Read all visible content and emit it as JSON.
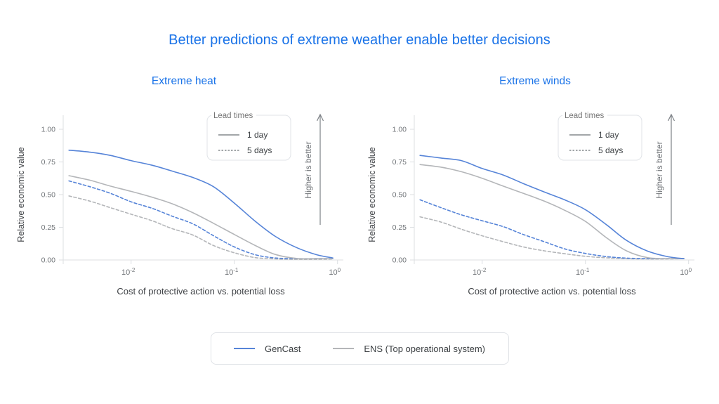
{
  "page": {
    "title": "Better predictions of extreme weather enable better decisions",
    "colors": {
      "title_blue": "#1a73e8",
      "gencast_blue": "#5684d8",
      "ens_gray": "#b4b6b9",
      "axis_line": "#dcdfe2",
      "tick_label": "#6f7377",
      "axis_title": "#3f4246",
      "legend_border": "#e0e3e7",
      "legend_text": "#3c4043",
      "legend_title_text": "#757575",
      "swatch_gray": "#84888c",
      "arrow_gray": "#7d8287"
    }
  },
  "bottom_legend": {
    "items": [
      {
        "name": "GenCast",
        "color": "#5684d8",
        "style": "solid"
      },
      {
        "name": "ENS (Top operational system)",
        "color": "#b4b6b9",
        "style": "solid"
      }
    ]
  },
  "chart_data": [
    {
      "type": "line",
      "title": "Extreme heat",
      "xlabel": "Cost of protective action vs. potential loss",
      "ylabel": "Relative economic value",
      "annotation": "Higher is better",
      "x_scale": "log",
      "xlim": [
        0.0022,
        1.02
      ],
      "ylim": [
        0,
        1
      ],
      "grid": false,
      "x_ticks": [
        {
          "value": 0.01,
          "label": "10^-2"
        },
        {
          "value": 0.1,
          "label": "10^-1"
        },
        {
          "value": 1,
          "label": "10^0"
        }
      ],
      "y_ticks": [
        {
          "value": 0,
          "label": "0.00"
        },
        {
          "value": 0.25,
          "label": "0.25"
        },
        {
          "value": 0.5,
          "label": "0.50"
        },
        {
          "value": 0.75,
          "label": "0.75"
        },
        {
          "value": 1,
          "label": "1.00"
        }
      ],
      "inner_legend": {
        "title": "Lead times",
        "items": [
          {
            "label": "1 day",
            "style": "solid"
          },
          {
            "label": "5 days",
            "style": "dashed"
          }
        ]
      },
      "x": [
        0.0025,
        0.004,
        0.0063,
        0.01,
        0.016,
        0.025,
        0.04,
        0.063,
        0.1,
        0.16,
        0.25,
        0.4,
        0.63,
        0.9
      ],
      "series": [
        {
          "name": "ENS 5 days",
          "model": "ENS",
          "lead": "5 days",
          "color": "#b4b6b9",
          "dash": true,
          "values": [
            0.49,
            0.45,
            0.4,
            0.35,
            0.3,
            0.24,
            0.19,
            0.11,
            0.055,
            0.018,
            0.008,
            0.005,
            0.005,
            0.008
          ]
        },
        {
          "name": "GenCast 5 days",
          "model": "GenCast",
          "lead": "5 days",
          "color": "#5684d8",
          "dash": true,
          "values": [
            0.605,
            0.56,
            0.51,
            0.445,
            0.395,
            0.335,
            0.275,
            0.185,
            0.1,
            0.04,
            0.015,
            0.01,
            0.01,
            0.01
          ]
        },
        {
          "name": "ENS 1 day",
          "model": "ENS",
          "lead": "1 day",
          "color": "#b4b6b9",
          "dash": false,
          "values": [
            0.645,
            0.61,
            0.565,
            0.525,
            0.48,
            0.43,
            0.36,
            0.28,
            0.195,
            0.11,
            0.042,
            0.012,
            0.01,
            0.01
          ]
        },
        {
          "name": "GenCast 1 day",
          "model": "GenCast",
          "lead": "1 day",
          "color": "#5684d8",
          "dash": false,
          "values": [
            0.84,
            0.825,
            0.8,
            0.76,
            0.725,
            0.68,
            0.63,
            0.56,
            0.435,
            0.295,
            0.18,
            0.095,
            0.04,
            0.015
          ]
        }
      ]
    },
    {
      "type": "line",
      "title": "Extreme winds",
      "xlabel": "Cost of protective action vs. potential loss",
      "ylabel": "Relative economic value",
      "annotation": "Higher is better",
      "x_scale": "log",
      "xlim": [
        0.0022,
        1.02
      ],
      "ylim": [
        0,
        1
      ],
      "grid": false,
      "x_ticks": [
        {
          "value": 0.01,
          "label": "10^-2"
        },
        {
          "value": 0.1,
          "label": "10^-1"
        },
        {
          "value": 1,
          "label": "10^0"
        }
      ],
      "y_ticks": [
        {
          "value": 0,
          "label": "0.00"
        },
        {
          "value": 0.25,
          "label": "0.25"
        },
        {
          "value": 0.5,
          "label": "0.50"
        },
        {
          "value": 0.75,
          "label": "0.75"
        },
        {
          "value": 1,
          "label": "1.00"
        }
      ],
      "inner_legend": {
        "title": "Lead times",
        "items": [
          {
            "label": "1 day",
            "style": "solid"
          },
          {
            "label": "5 days",
            "style": "dashed"
          }
        ]
      },
      "x": [
        0.0025,
        0.004,
        0.0063,
        0.01,
        0.016,
        0.025,
        0.04,
        0.063,
        0.1,
        0.16,
        0.25,
        0.4,
        0.63,
        0.9
      ],
      "series": [
        {
          "name": "ENS 5 days",
          "model": "ENS",
          "lead": "5 days",
          "color": "#b4b6b9",
          "dash": true,
          "values": [
            0.33,
            0.29,
            0.235,
            0.185,
            0.14,
            0.1,
            0.07,
            0.048,
            0.028,
            0.016,
            0.01,
            0.008,
            0.008,
            0.01
          ]
        },
        {
          "name": "GenCast 5 days",
          "model": "GenCast",
          "lead": "5 days",
          "color": "#5684d8",
          "dash": true,
          "values": [
            0.46,
            0.4,
            0.345,
            0.3,
            0.255,
            0.195,
            0.14,
            0.085,
            0.05,
            0.026,
            0.014,
            0.01,
            0.01,
            0.01
          ]
        },
        {
          "name": "ENS 1 day",
          "model": "ENS",
          "lead": "1 day",
          "color": "#b4b6b9",
          "dash": false,
          "values": [
            0.73,
            0.71,
            0.675,
            0.625,
            0.565,
            0.51,
            0.45,
            0.38,
            0.295,
            0.17,
            0.07,
            0.018,
            0.01,
            0.01
          ]
        },
        {
          "name": "GenCast 1 day",
          "model": "GenCast",
          "lead": "1 day",
          "color": "#5684d8",
          "dash": false,
          "values": [
            0.8,
            0.78,
            0.76,
            0.7,
            0.65,
            0.585,
            0.52,
            0.46,
            0.385,
            0.27,
            0.15,
            0.068,
            0.025,
            0.01
          ]
        }
      ]
    }
  ]
}
